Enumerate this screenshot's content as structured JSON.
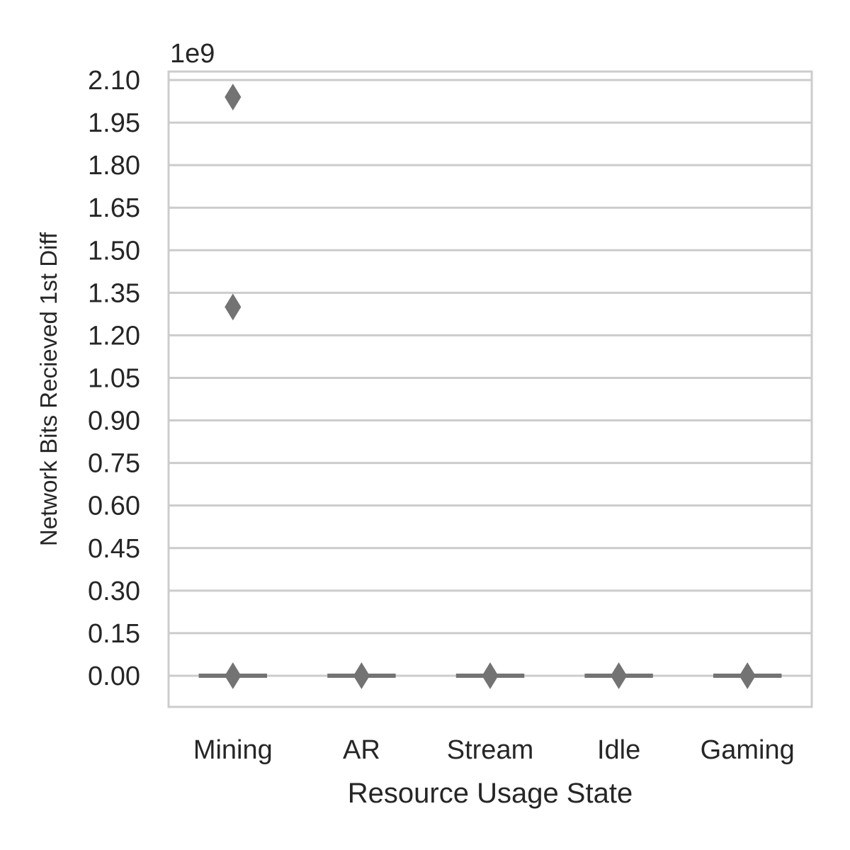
{
  "chart_data": {
    "type": "box",
    "categories": [
      "Mining",
      "AR",
      "Stream",
      "Idle",
      "Gaming"
    ],
    "xlabel": "Resource Usage State",
    "ylabel": "Network Bits Recieved 1st Diff",
    "y_offset_label": "1e9",
    "ylim": [
      -0.11,
      2.13
    ],
    "yticks": [
      0.0,
      0.15,
      0.3,
      0.45,
      0.6,
      0.75,
      0.9,
      1.05,
      1.2,
      1.35,
      1.5,
      1.65,
      1.8,
      1.95,
      2.1
    ],
    "ytick_labels": [
      "0.00",
      "0.15",
      "0.30",
      "0.45",
      "0.60",
      "0.75",
      "0.90",
      "1.05",
      "1.20",
      "1.35",
      "1.50",
      "1.65",
      "1.80",
      "1.95",
      "2.10"
    ],
    "grid": "horizontal",
    "box_color": "#737373",
    "series": [
      {
        "category": "Mining",
        "median": 0.0,
        "q1": 0.0,
        "q3": 0.0,
        "whisker_low": 0.0,
        "whisker_high": 0.0,
        "outliers": [
          0.0,
          1.3,
          2.04
        ]
      },
      {
        "category": "AR",
        "median": 0.0,
        "q1": 0.0,
        "q3": 0.0,
        "whisker_low": 0.0,
        "whisker_high": 0.0,
        "outliers": [
          0.0
        ]
      },
      {
        "category": "Stream",
        "median": 0.0,
        "q1": 0.0,
        "q3": 0.0,
        "whisker_low": 0.0,
        "whisker_high": 0.0,
        "outliers": [
          0.0
        ]
      },
      {
        "category": "Idle",
        "median": 0.0,
        "q1": 0.0,
        "q3": 0.0,
        "whisker_low": 0.0,
        "whisker_high": 0.0,
        "outliers": [
          0.0
        ]
      },
      {
        "category": "Gaming",
        "median": 0.0,
        "q1": 0.0,
        "q3": 0.0,
        "whisker_low": 0.0,
        "whisker_high": 0.0,
        "outliers": [
          0.0
        ]
      }
    ]
  }
}
